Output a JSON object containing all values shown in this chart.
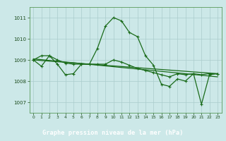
{
  "title": "Graphe pression niveau de la mer (hPa)",
  "background_color": "#cce8e8",
  "plot_bg_color": "#cce8e8",
  "grid_color": "#aacccc",
  "line_color": "#1a6b1a",
  "label_bar_color": "#2d6b2d",
  "label_text_color": "#ffffff",
  "tick_color": "#1a4a1a",
  "xlim": [
    -0.5,
    23.5
  ],
  "ylim": [
    1006.5,
    1011.5
  ],
  "yticks": [
    1007,
    1008,
    1009,
    1010,
    1011
  ],
  "xticks": [
    0,
    1,
    2,
    3,
    4,
    5,
    6,
    7,
    8,
    9,
    10,
    11,
    12,
    13,
    14,
    15,
    16,
    17,
    18,
    19,
    20,
    21,
    22,
    23
  ],
  "series1": [
    1009.0,
    1008.7,
    1009.2,
    1008.8,
    1008.3,
    1008.35,
    1008.8,
    1008.8,
    1009.55,
    1010.6,
    1011.0,
    1010.85,
    1010.3,
    1010.1,
    1009.2,
    1008.75,
    1007.85,
    1007.75,
    1008.1,
    1008.0,
    1008.35,
    1006.9,
    1008.3,
    1008.35
  ],
  "series2": [
    1009.0,
    1009.2,
    1009.2,
    1009.0,
    1008.85,
    1008.8,
    1008.8,
    1008.8,
    1008.8,
    1008.8,
    1009.0,
    1008.9,
    1008.75,
    1008.6,
    1008.5,
    1008.4,
    1008.3,
    1008.2,
    1008.35,
    1008.3,
    1008.35,
    1008.3,
    1008.35,
    1008.35
  ],
  "series3": [
    [
      0,
      1009.0
    ],
    [
      23,
      1008.35
    ]
  ],
  "series4": [
    [
      0,
      1009.05
    ],
    [
      23,
      1008.2
    ]
  ],
  "lw": 0.9,
  "marker_size": 2.5
}
